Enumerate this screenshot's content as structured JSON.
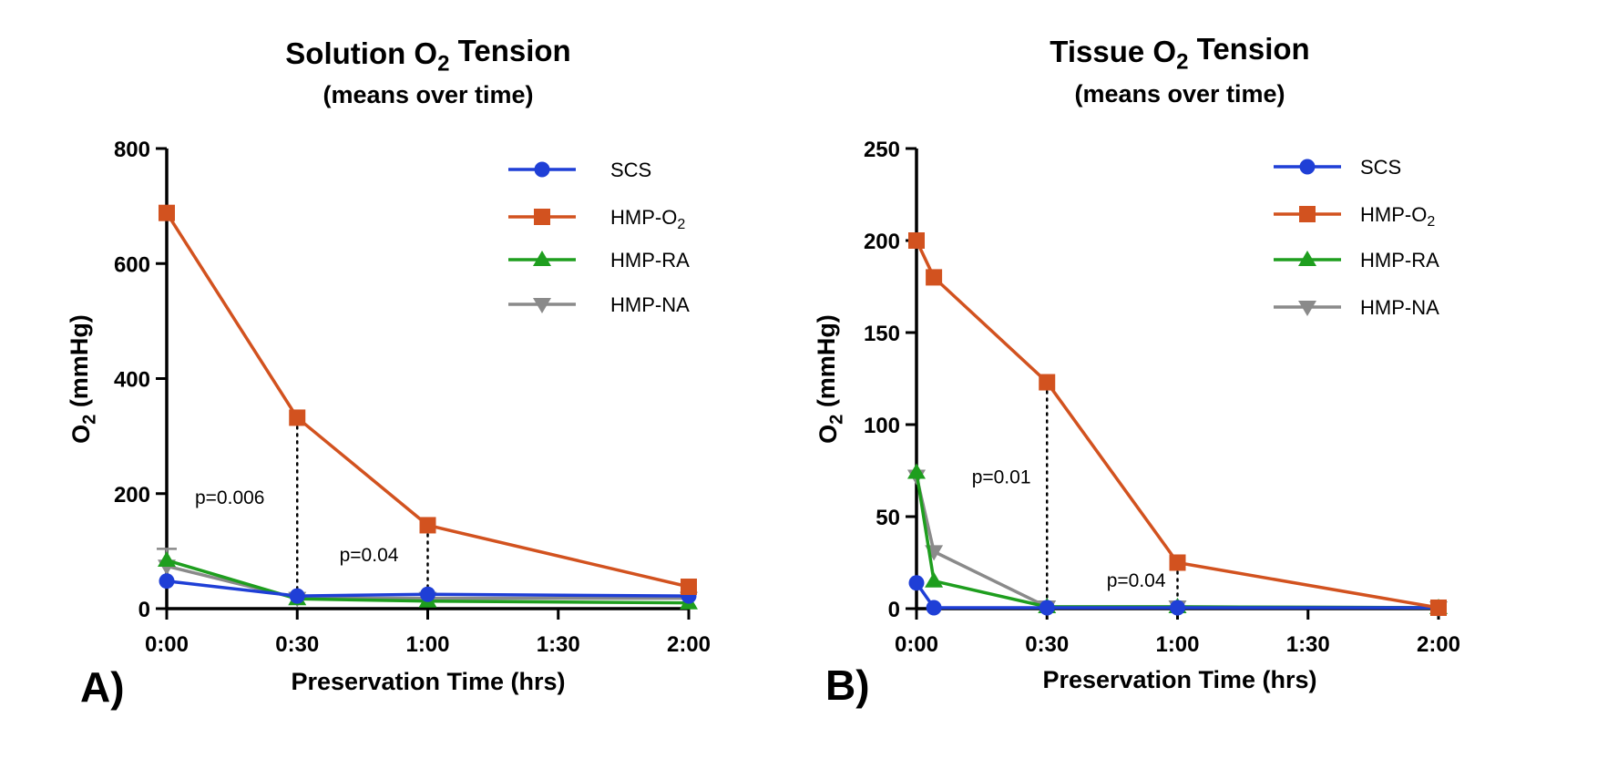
{
  "chart_data": [
    {
      "type": "line",
      "panel_label": "A)",
      "title": "Solution O",
      "title_sub": "2",
      "title_tail": " Tension",
      "subtitle": "(means over time)",
      "ylabel": "O",
      "ylabel_sub": "2",
      "ylabel_tail": " (mmHg)",
      "xlabel": "Preservation  Time  (hrs)",
      "x_unit": "minutes",
      "xlim": [
        0,
        120
      ],
      "ylim": [
        0,
        800
      ],
      "yticks": [
        0,
        200,
        400,
        600,
        800
      ],
      "ytick_labels": [
        "0",
        "200",
        "400",
        "600",
        "800"
      ],
      "xticks": [
        0,
        30,
        60,
        90,
        120
      ],
      "xtick_labels": [
        "0:00",
        "0:30",
        "1:00",
        "1:30",
        "2:00"
      ],
      "legend_position": "top-right",
      "series": [
        {
          "name": "SCS",
          "name_sub": "",
          "color": "#1f3fd6",
          "marker": "circle",
          "x": [
            0,
            30,
            60,
            120
          ],
          "y": [
            48,
            22,
            25,
            22
          ]
        },
        {
          "name": "HMP-O",
          "name_sub": "2",
          "color": "#d2521f",
          "marker": "square",
          "x": [
            0,
            30,
            60,
            120
          ],
          "y": [
            688,
            332,
            145,
            38
          ]
        },
        {
          "name": "HMP-RA",
          "name_sub": "",
          "color": "#1e9e1e",
          "marker": "triangle-up",
          "x": [
            0,
            30,
            60,
            120
          ],
          "y": [
            84,
            17,
            13,
            10
          ]
        },
        {
          "name": "HMP-NA",
          "name_sub": "",
          "color": "#8a8a8a",
          "marker": "triangle-down",
          "x": [
            0,
            30,
            60,
            120
          ],
          "y": [
            74,
            18,
            18,
            18
          ]
        }
      ],
      "error_bars": [
        {
          "series": "HMP-NA",
          "x": 0,
          "upper": 104
        }
      ],
      "annotations": [
        {
          "text": "p=0.006",
          "x": 30,
          "y_from": 332,
          "y_to": 20,
          "label_x": 14.5,
          "label_y": 182
        },
        {
          "text": "p=0.04",
          "x": 60,
          "y_from": 145,
          "y_to": 26,
          "label_x": 46.5,
          "label_y": 82
        }
      ]
    },
    {
      "type": "line",
      "panel_label": "B)",
      "title": "Tissue O",
      "title_sub": "2",
      "title_tail": " Tension",
      "subtitle": "(means over time)",
      "ylabel": "O",
      "ylabel_sub": "2",
      "ylabel_tail": " (mmHg)",
      "xlabel": "Preservation  Time  (hrs)",
      "x_unit": "minutes",
      "xlim": [
        0,
        120
      ],
      "ylim": [
        0,
        250
      ],
      "yticks": [
        0,
        50,
        100,
        150,
        200,
        250
      ],
      "ytick_labels": [
        "0",
        "50",
        "100",
        "150",
        "200",
        "250"
      ],
      "xticks": [
        0,
        30,
        60,
        90,
        120
      ],
      "xtick_labels": [
        "0:00",
        "0:30",
        "1:00",
        "1:30",
        "2:00"
      ],
      "legend_position": "top-right",
      "series": [
        {
          "name": "SCS",
          "name_sub": "",
          "color": "#1f3fd6",
          "marker": "circle",
          "x": [
            0,
            4,
            30,
            60,
            120
          ],
          "y": [
            14,
            0.5,
            0.5,
            0.5,
            0.5
          ]
        },
        {
          "name": "HMP-O",
          "name_sub": "2",
          "color": "#d2521f",
          "marker": "square",
          "x": [
            0,
            4,
            30,
            60,
            120
          ],
          "y": [
            200,
            180,
            123,
            25,
            0.5
          ]
        },
        {
          "name": "HMP-RA",
          "name_sub": "",
          "color": "#1e9e1e",
          "marker": "triangle-up",
          "x": [
            0,
            4,
            30,
            60,
            120
          ],
          "y": [
            74,
            15,
            1,
            1,
            0.5
          ]
        },
        {
          "name": "HMP-NA",
          "name_sub": "",
          "color": "#8a8a8a",
          "marker": "triangle-down",
          "x": [
            0,
            4,
            30,
            60,
            120
          ],
          "y": [
            72,
            31,
            1,
            1,
            0.5
          ]
        }
      ],
      "annotations": [
        {
          "text": "p=0.01",
          "x": 30,
          "y_from": 123,
          "y_to": 1,
          "label_x": 19.5,
          "label_y": 68
        },
        {
          "text": "p=0.04",
          "x": 60,
          "y_from": 25,
          "y_to": 1,
          "label_x": 50.5,
          "label_y": 12
        }
      ]
    }
  ]
}
